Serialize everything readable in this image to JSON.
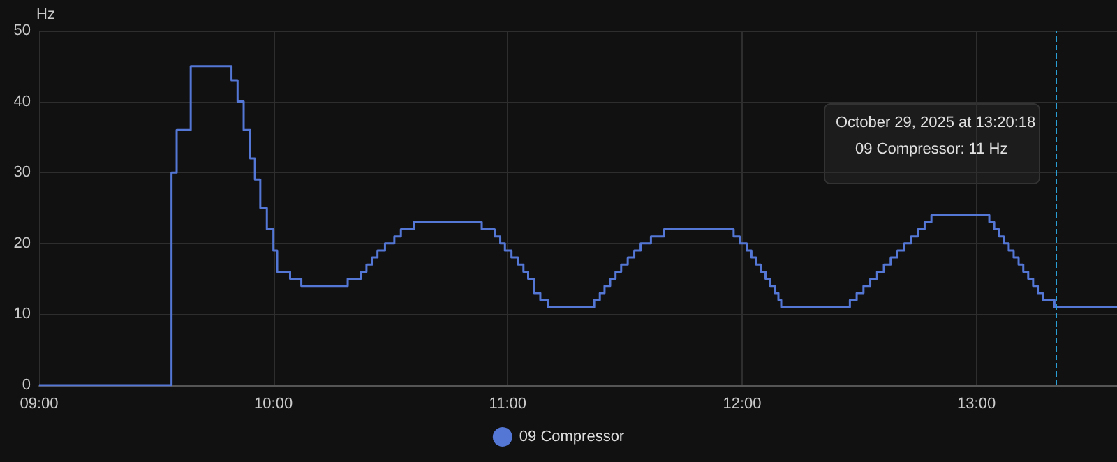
{
  "chart_data": {
    "type": "step",
    "ylabel": "Hz",
    "x": [
      9.0,
      9.565,
      9.587,
      9.647,
      9.821,
      9.847,
      9.873,
      9.901,
      9.921,
      9.944,
      9.972,
      10.0,
      10.016,
      10.071,
      10.119,
      10.317,
      10.373,
      10.397,
      10.421,
      10.444,
      10.476,
      10.516,
      10.544,
      10.599,
      10.889,
      10.944,
      10.968,
      10.988,
      11.016,
      11.044,
      11.067,
      11.087,
      11.113,
      11.139,
      11.171,
      11.369,
      11.393,
      11.413,
      11.437,
      11.46,
      11.484,
      11.512,
      11.54,
      11.567,
      11.611,
      11.667,
      11.964,
      11.99,
      12.02,
      12.04,
      12.06,
      12.08,
      12.1,
      12.12,
      12.14,
      12.155,
      12.167,
      12.46,
      12.489,
      12.518,
      12.547,
      12.576,
      12.605,
      12.634,
      12.663,
      12.692,
      12.721,
      12.75,
      12.779,
      12.808,
      13.055,
      13.076,
      13.097,
      13.117,
      13.138,
      13.159,
      13.18,
      13.2,
      13.221,
      13.242,
      13.262,
      13.283,
      13.333,
      13.6
    ],
    "series": [
      {
        "name": "09 Compressor",
        "color": "#5477d6",
        "values": [
          0,
          30,
          36,
          45,
          43,
          40,
          36,
          32,
          29,
          25,
          22,
          19,
          16,
          15,
          14,
          15,
          16,
          17,
          18,
          19,
          20,
          21,
          22,
          23,
          22,
          21,
          20,
          19,
          18,
          17,
          16,
          15,
          13,
          12,
          11,
          12,
          13,
          14,
          15,
          16,
          17,
          18,
          19,
          20,
          21,
          22,
          21,
          20,
          19,
          18,
          17,
          16,
          15,
          14,
          13,
          12,
          11,
          12,
          13,
          14,
          15,
          16,
          17,
          18,
          19,
          20,
          21,
          22,
          23,
          24,
          23,
          22,
          21,
          20,
          19,
          18,
          17,
          16,
          15,
          14,
          13,
          12,
          11,
          11
        ]
      }
    ],
    "xlim": [
      9,
      13.6
    ],
    "xticks": [
      {
        "value": 9,
        "label": "09:00"
      },
      {
        "value": 10,
        "label": "10:00"
      },
      {
        "value": 11,
        "label": "11:00"
      },
      {
        "value": 12,
        "label": "12:00"
      },
      {
        "value": 13,
        "label": "13:00"
      }
    ],
    "ylim": [
      0,
      50
    ],
    "yticks": [
      0,
      10,
      20,
      30,
      40,
      50
    ],
    "grid": true,
    "legend": "bottom",
    "marker": "none",
    "line_style": "solid",
    "ref_lines": [
      {
        "axis": "x",
        "value": 13.338,
        "color": "#2a9fd6",
        "line_style": "dashed"
      }
    ],
    "annotations": [
      "October 29, 2025 at 13:20:18",
      "09 Compressor: 11 Hz"
    ]
  }
}
